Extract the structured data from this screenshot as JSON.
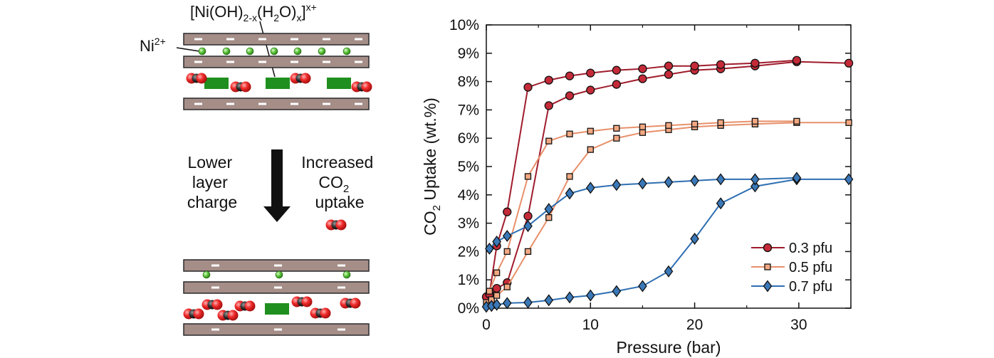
{
  "schematic": {
    "top_formula": {
      "pre": "[Ni(OH)",
      "sub1": "2-x",
      "mid": "(H",
      "sub2": "2",
      "post": "O)",
      "sub3": "x",
      "close": "]",
      "sup": "x+"
    },
    "ni_label": {
      "base": "Ni",
      "sup": "2+"
    },
    "left_text": [
      "Lower",
      "layer",
      "charge"
    ],
    "right_text": {
      "line1": "Increased",
      "co2_base": "CO",
      "co2_sub": "2",
      "line3": "uptake"
    },
    "colors": {
      "layer": "#a58d88",
      "charge_bar": "#ffffff",
      "ni_ion": "#5cc43a",
      "guest": "#1f8f1f",
      "oxygen": "#e02020",
      "carbon": "#2b2b2b"
    }
  },
  "chart_data": {
    "type": "line",
    "xlabel": "Pressure (bar)",
    "ylabel_base": "CO",
    "ylabel_sub": "2",
    "ylabel_rest": " Uptake (wt.%)",
    "xlim": [
      0,
      35
    ],
    "ylim": [
      0,
      10
    ],
    "xticks": [
      0,
      10,
      20,
      30
    ],
    "yticks": [
      0,
      1,
      2,
      3,
      4,
      5,
      6,
      7,
      8,
      9,
      10
    ],
    "ytick_labels": [
      "0%",
      "1%",
      "2%",
      "3%",
      "4%",
      "5%",
      "6%",
      "7%",
      "8%",
      "9%",
      "10%"
    ],
    "grid": false,
    "legend_position": "bottom-right",
    "series": [
      {
        "name": "0.3 pfu",
        "color": "#a01c2c",
        "fill": "#c42a38",
        "marker": "circle",
        "adsorption": {
          "x": [
            0,
            0.5,
            1,
            2,
            4,
            6,
            8,
            10,
            12.5,
            15,
            17.5,
            20,
            22.5,
            25.8,
            29.8,
            34.8
          ],
          "y": [
            0.4,
            0.55,
            0.7,
            0.9,
            3.25,
            7.15,
            7.5,
            7.7,
            7.9,
            8.1,
            8.25,
            8.4,
            8.45,
            8.55,
            8.7,
            8.65
          ]
        },
        "desorption": {
          "x": [
            29.8,
            25.8,
            22.5,
            20,
            17.5,
            15,
            12.5,
            10,
            8,
            6,
            4,
            2,
            1,
            0.3
          ],
          "y": [
            8.75,
            8.65,
            8.6,
            8.55,
            8.55,
            8.45,
            8.4,
            8.3,
            8.2,
            8.05,
            7.8,
            3.4,
            2.2,
            0.5
          ]
        }
      },
      {
        "name": "0.5 pfu",
        "color": "#e8906a",
        "fill": "#f2a882",
        "marker": "square",
        "adsorption": {
          "x": [
            0,
            0.5,
            1,
            2,
            4,
            6,
            8,
            10,
            12.5,
            15,
            17.5,
            20,
            22.5,
            25.8,
            29.8,
            34.8
          ],
          "y": [
            0.2,
            0.3,
            0.45,
            0.75,
            2.0,
            3.2,
            4.65,
            5.6,
            6.0,
            6.2,
            6.3,
            6.4,
            6.45,
            6.5,
            6.55,
            6.55
          ]
        },
        "desorption": {
          "x": [
            29.8,
            25.8,
            22.5,
            20,
            17.5,
            15,
            12.5,
            10,
            8,
            6,
            4,
            2,
            1,
            0.3
          ],
          "y": [
            6.6,
            6.6,
            6.55,
            6.5,
            6.45,
            6.4,
            6.35,
            6.25,
            6.15,
            5.9,
            4.65,
            2.0,
            1.25,
            0.6
          ]
        }
      },
      {
        "name": "0.7 pfu",
        "color": "#2e6fb2",
        "fill": "#3a78b8",
        "marker": "diamond",
        "adsorption": {
          "x": [
            0,
            0.5,
            1,
            2,
            4,
            6,
            8,
            10,
            12.5,
            15,
            17.5,
            20,
            22.5,
            25.8,
            29.8,
            34.8
          ],
          "y": [
            0.05,
            0.08,
            0.12,
            0.18,
            0.2,
            0.28,
            0.38,
            0.45,
            0.6,
            0.78,
            1.3,
            2.45,
            3.7,
            4.3,
            4.55,
            4.55
          ]
        },
        "desorption": {
          "x": [
            29.8,
            25.8,
            22.5,
            20,
            17.5,
            15,
            12.5,
            10,
            8,
            6,
            4,
            2,
            1,
            0.3
          ],
          "y": [
            4.6,
            4.55,
            4.55,
            4.5,
            4.45,
            4.4,
            4.35,
            4.25,
            4.05,
            3.5,
            2.9,
            2.55,
            2.35,
            2.1
          ]
        }
      }
    ]
  }
}
